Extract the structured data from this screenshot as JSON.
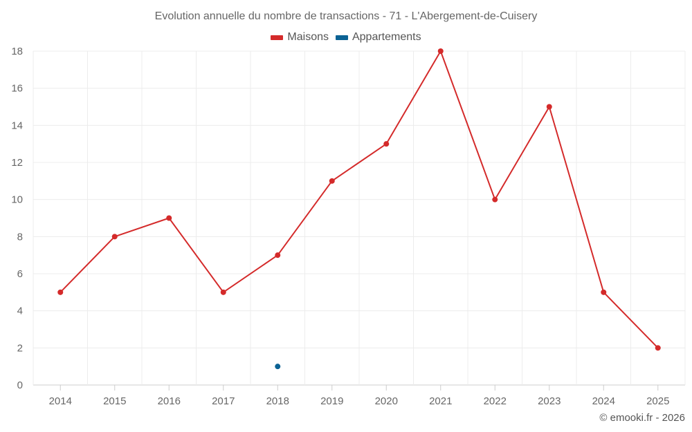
{
  "chart_data": {
    "type": "line",
    "title": "Evolution annuelle du nombre de transactions - 71 - L'Abergement-de-Cuisery",
    "xlabel": "",
    "ylabel": "",
    "categories": [
      "2014",
      "2015",
      "2016",
      "2017",
      "2018",
      "2019",
      "2020",
      "2021",
      "2022",
      "2023",
      "2024",
      "2025"
    ],
    "ylim": [
      0,
      18
    ],
    "yticks": [
      0,
      2,
      4,
      6,
      8,
      10,
      12,
      14,
      16,
      18
    ],
    "grid": true,
    "legend_position": "top-center",
    "series": [
      {
        "name": "Maisons",
        "color": "#d42a2a",
        "values": [
          5,
          8,
          9,
          5,
          7,
          11,
          13,
          18,
          10,
          15,
          5,
          2
        ]
      },
      {
        "name": "Appartements",
        "color": "#0b6294",
        "values": [
          null,
          null,
          null,
          null,
          1,
          null,
          null,
          null,
          null,
          null,
          null,
          null
        ]
      }
    ]
  },
  "credits": "© emooki.fr - 2026"
}
